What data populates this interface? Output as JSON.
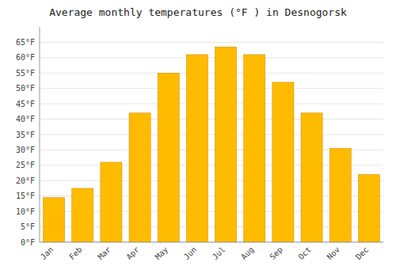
{
  "chart_data": {
    "type": "bar",
    "title": "Average monthly temperatures (°F ) in Desnogorsk",
    "categories": [
      "Jan",
      "Feb",
      "Mar",
      "Apr",
      "May",
      "Jun",
      "Jul",
      "Aug",
      "Sep",
      "Oct",
      "Nov",
      "Dec"
    ],
    "values": [
      14.5,
      17.5,
      26.0,
      42.0,
      55.0,
      61.0,
      63.5,
      61.0,
      52.0,
      42.0,
      30.5,
      22.0
    ],
    "color": "#FFBB00",
    "ylim": [
      0,
      70
    ],
    "yticks": [
      {
        "value": 0,
        "label": "0°F"
      },
      {
        "value": 5,
        "label": "5°F"
      },
      {
        "value": 10,
        "label": "10°F"
      },
      {
        "value": 15,
        "label": "15°F"
      },
      {
        "value": 20,
        "label": "20°F"
      },
      {
        "value": 25,
        "label": "25°F"
      },
      {
        "value": 30,
        "label": "30°F"
      },
      {
        "value": 35,
        "label": "35°F"
      },
      {
        "value": 40,
        "label": "40°F"
      },
      {
        "value": 45,
        "label": "45°F"
      },
      {
        "value": 50,
        "label": "50°F"
      },
      {
        "value": 55,
        "label": "55°F"
      },
      {
        "value": 60,
        "label": "60°F"
      },
      {
        "value": 65,
        "label": "65°F"
      }
    ],
    "grid": true
  }
}
